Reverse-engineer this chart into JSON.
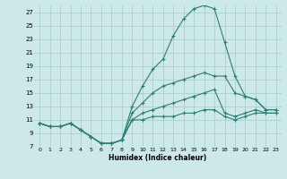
{
  "xlabel": "Humidex (Indice chaleur)",
  "bg_color": "#cce8e8",
  "grid_color": "#aacfcf",
  "line_color": "#2e7d72",
  "xlim": [
    -0.5,
    23.5
  ],
  "ylim": [
    7,
    28
  ],
  "yticks": [
    7,
    9,
    11,
    13,
    15,
    17,
    19,
    21,
    23,
    25,
    27
  ],
  "xticks": [
    0,
    1,
    2,
    3,
    4,
    5,
    6,
    7,
    8,
    9,
    10,
    11,
    12,
    13,
    14,
    15,
    16,
    17,
    18,
    19,
    20,
    21,
    22,
    23
  ],
  "series": [
    [
      10.5,
      10.0,
      10.0,
      10.5,
      9.5,
      8.5,
      7.5,
      7.5,
      8.0,
      13.0,
      16.0,
      18.5,
      20.0,
      23.5,
      26.0,
      27.5,
      28.0,
      27.5,
      22.5,
      17.5,
      14.5,
      14.0,
      12.5,
      12.5
    ],
    [
      10.5,
      10.0,
      10.0,
      10.5,
      9.5,
      8.5,
      7.5,
      7.5,
      8.0,
      12.0,
      13.5,
      15.0,
      16.0,
      16.5,
      17.0,
      17.5,
      18.0,
      17.5,
      17.5,
      15.0,
      14.5,
      14.0,
      12.5,
      12.5
    ],
    [
      10.5,
      10.0,
      10.0,
      10.5,
      9.5,
      8.5,
      7.5,
      7.5,
      8.0,
      11.0,
      12.0,
      12.5,
      13.0,
      13.5,
      14.0,
      14.5,
      15.0,
      15.5,
      12.0,
      11.5,
      12.0,
      12.5,
      12.0,
      12.0
    ],
    [
      10.5,
      10.0,
      10.0,
      10.5,
      9.5,
      8.5,
      7.5,
      7.5,
      8.0,
      11.0,
      11.0,
      11.5,
      11.5,
      11.5,
      12.0,
      12.0,
      12.5,
      12.5,
      11.5,
      11.0,
      11.5,
      12.0,
      12.0,
      12.0
    ]
  ]
}
